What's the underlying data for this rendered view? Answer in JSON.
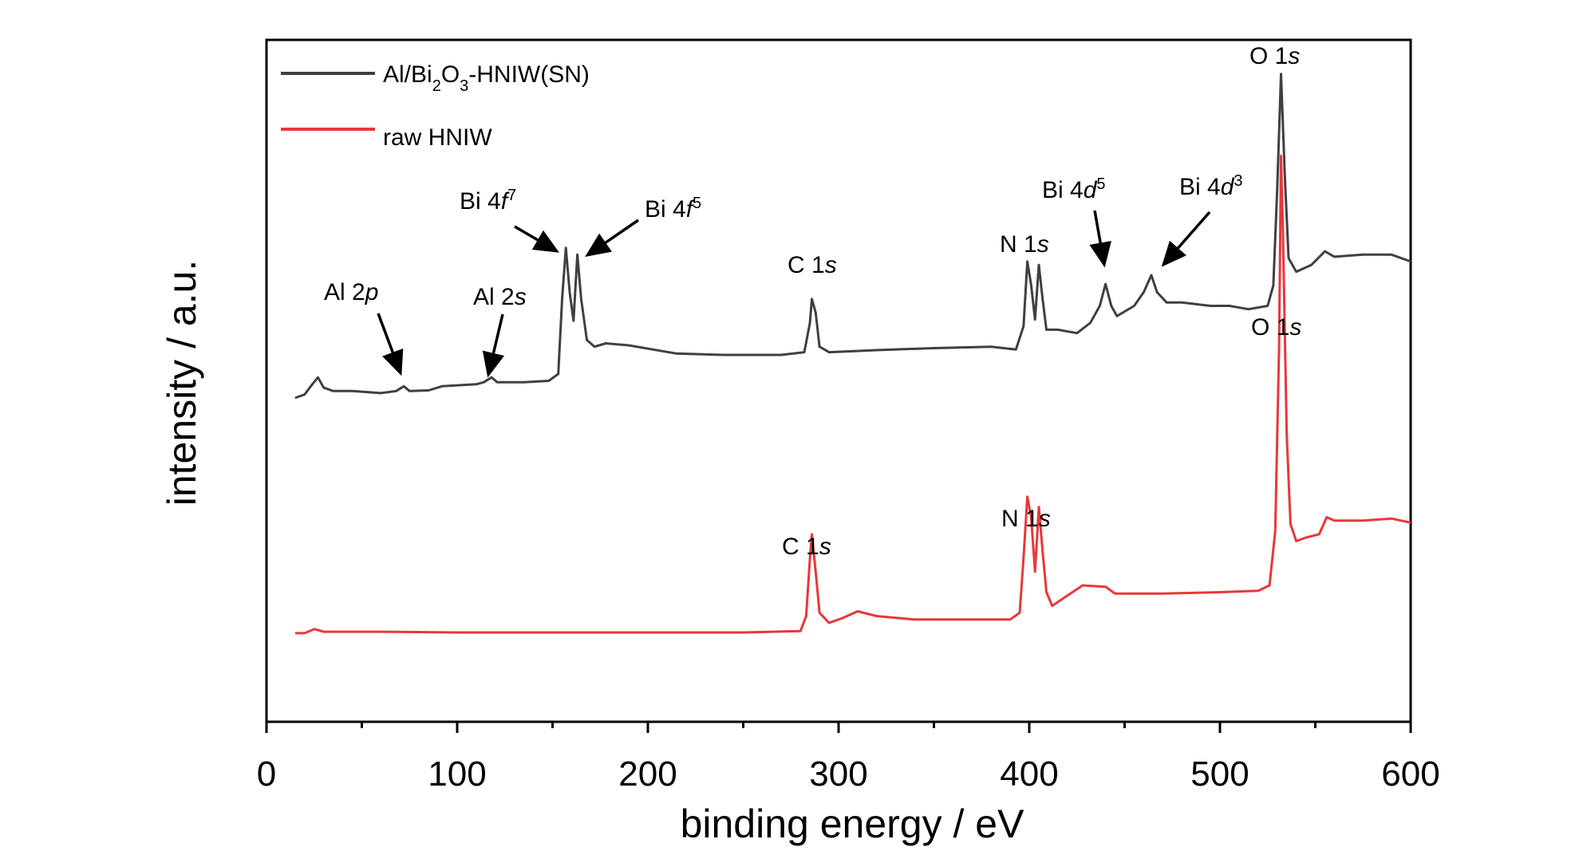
{
  "chart_data": {
    "type": "line",
    "title": "",
    "xlabel": "binding energy / eV",
    "ylabel": "intensity / a.u.",
    "xlim": [
      0,
      600
    ],
    "ylim": [
      0,
      100
    ],
    "xticks": [
      "0",
      "100",
      "200",
      "300",
      "400",
      "500",
      "600"
    ],
    "grid": false,
    "legend_position": "top-left",
    "series": [
      {
        "name": "Al/Bi2O3-HNIW(SN)",
        "label": {
          "main": "Al/Bi",
          "sub1": "2",
          "mid": "O",
          "sub2": "3",
          "tail": "-HNIW(SN)"
        },
        "color": "#404040",
        "points": [
          [
            15,
            47.5
          ],
          [
            20,
            48
          ],
          [
            24,
            49.5
          ],
          [
            27,
            50.5
          ],
          [
            30,
            49
          ],
          [
            35,
            48.5
          ],
          [
            45,
            48.5
          ],
          [
            60,
            48.2
          ],
          [
            68,
            48.5
          ],
          [
            72,
            49.2
          ],
          [
            75,
            48.5
          ],
          [
            85,
            48.6
          ],
          [
            92,
            49.2
          ],
          [
            110,
            49.5
          ],
          [
            114,
            49.8
          ],
          [
            118,
            50.5
          ],
          [
            121,
            49.8
          ],
          [
            135,
            49.8
          ],
          [
            148,
            50
          ],
          [
            153,
            51
          ],
          [
            155,
            62
          ],
          [
            157,
            69.5
          ],
          [
            159,
            63
          ],
          [
            161,
            58.8
          ],
          [
            163,
            68.5
          ],
          [
            165,
            62
          ],
          [
            168,
            56
          ],
          [
            172,
            55
          ],
          [
            178,
            55.5
          ],
          [
            190,
            55.2
          ],
          [
            215,
            54
          ],
          [
            240,
            53.8
          ],
          [
            270,
            53.8
          ],
          [
            282,
            54.2
          ],
          [
            285,
            58.5
          ],
          [
            286,
            62
          ],
          [
            288,
            60
          ],
          [
            290,
            55
          ],
          [
            295,
            54.2
          ],
          [
            320,
            54.5
          ],
          [
            350,
            54.8
          ],
          [
            380,
            55
          ],
          [
            393,
            54.6
          ],
          [
            397,
            58
          ],
          [
            399,
            67.5
          ],
          [
            401,
            64
          ],
          [
            403,
            59
          ],
          [
            405,
            67
          ],
          [
            407,
            62
          ],
          [
            409,
            57.5
          ],
          [
            415,
            57.5
          ],
          [
            425,
            57
          ],
          [
            432,
            58.5
          ],
          [
            437,
            61
          ],
          [
            440,
            64.2
          ],
          [
            443,
            61
          ],
          [
            446,
            59.5
          ],
          [
            455,
            61
          ],
          [
            460,
            63
          ],
          [
            464,
            65.5
          ],
          [
            467,
            63
          ],
          [
            472,
            61.5
          ],
          [
            480,
            61.5
          ],
          [
            495,
            61
          ],
          [
            505,
            61
          ],
          [
            515,
            60.5
          ],
          [
            525,
            61
          ],
          [
            528,
            64
          ],
          [
            530,
            78
          ],
          [
            532,
            95
          ],
          [
            534,
            80
          ],
          [
            536,
            68
          ],
          [
            540,
            66
          ],
          [
            548,
            67
          ],
          [
            555,
            69
          ],
          [
            560,
            68.2
          ],
          [
            575,
            68.5
          ],
          [
            590,
            68.5
          ],
          [
            600,
            67.5
          ]
        ]
      },
      {
        "name": "raw HNIW",
        "color": "#e8373b",
        "points": [
          [
            15,
            13
          ],
          [
            20,
            13
          ],
          [
            25,
            13.6
          ],
          [
            30,
            13.2
          ],
          [
            60,
            13.2
          ],
          [
            100,
            13.1
          ],
          [
            150,
            13.1
          ],
          [
            200,
            13.1
          ],
          [
            250,
            13.1
          ],
          [
            280,
            13.3
          ],
          [
            283,
            15.5
          ],
          [
            285,
            24
          ],
          [
            286,
            27.5
          ],
          [
            288,
            22
          ],
          [
            290,
            16
          ],
          [
            295,
            14.5
          ],
          [
            302,
            15.2
          ],
          [
            310,
            16.2
          ],
          [
            320,
            15.5
          ],
          [
            340,
            15
          ],
          [
            370,
            15
          ],
          [
            390,
            15
          ],
          [
            395,
            16
          ],
          [
            397,
            24
          ],
          [
            399,
            33
          ],
          [
            401,
            30
          ],
          [
            403,
            22
          ],
          [
            405,
            31.5
          ],
          [
            407,
            25
          ],
          [
            409,
            19
          ],
          [
            412,
            17
          ],
          [
            420,
            18.5
          ],
          [
            428,
            20
          ],
          [
            440,
            19.8
          ],
          [
            445,
            18.8
          ],
          [
            470,
            18.8
          ],
          [
            500,
            19
          ],
          [
            520,
            19.2
          ],
          [
            526,
            20
          ],
          [
            529,
            28
          ],
          [
            531,
            55
          ],
          [
            532,
            83
          ],
          [
            533,
            72
          ],
          [
            535,
            42
          ],
          [
            537,
            29
          ],
          [
            540,
            26.5
          ],
          [
            545,
            27
          ],
          [
            552,
            27.5
          ],
          [
            556,
            30
          ],
          [
            560,
            29.5
          ],
          [
            575,
            29.5
          ],
          [
            590,
            29.8
          ],
          [
            600,
            29.2
          ]
        ]
      }
    ],
    "annotations": [
      {
        "id": "o1s-top",
        "base": "O 1",
        "ital": "s",
        "sup": ""
      },
      {
        "id": "al2p",
        "base": "Al 2",
        "ital": "p",
        "sup": ""
      },
      {
        "id": "al2s",
        "base": "Al 2",
        "ital": "s",
        "sup": ""
      },
      {
        "id": "bi4f7",
        "base": "Bi 4",
        "ital": "f",
        "sup": "7"
      },
      {
        "id": "bi4f5",
        "base": "Bi 4",
        "ital": "f",
        "sup": "5"
      },
      {
        "id": "c1s-top",
        "base": "C 1",
        "ital": "s",
        "sup": ""
      },
      {
        "id": "n1s-top",
        "base": "N 1",
        "ital": "s",
        "sup": ""
      },
      {
        "id": "bi4d5",
        "base": "Bi 4",
        "ital": "d",
        "sup": "5"
      },
      {
        "id": "bi4d3",
        "base": "Bi 4",
        "ital": "d",
        "sup": "3"
      },
      {
        "id": "o1s-bottom",
        "base": "O 1",
        "ital": "s",
        "sup": ""
      },
      {
        "id": "c1s-bottom",
        "base": "C 1",
        "ital": "s",
        "sup": ""
      },
      {
        "id": "n1s-bottom",
        "base": "N 1",
        "ital": "s",
        "sup": ""
      }
    ]
  }
}
